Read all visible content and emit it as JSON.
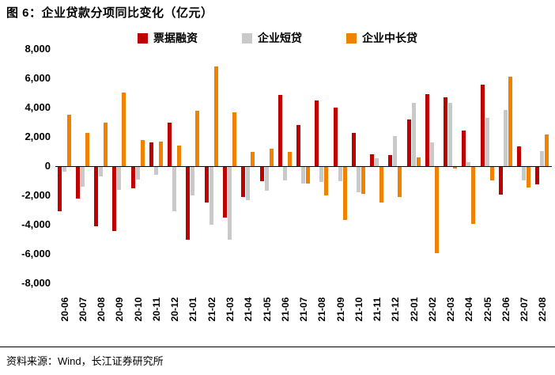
{
  "title": "图 6：企业贷款分项同比变化（亿元）",
  "source": "资料来源：Wind，长江证券研究所",
  "chart_data": {
    "type": "bar",
    "title": "企业贷款分项同比变化（亿元）",
    "xlabel": "",
    "ylabel": "",
    "ylim": [
      -8000,
      8000
    ],
    "ytick_step": 2000,
    "grid": false,
    "legend_position": "top",
    "categories": [
      "20-06",
      "20-07",
      "20-08",
      "20-09",
      "20-10",
      "20-11",
      "20-12",
      "21-01",
      "21-02",
      "21-03",
      "21-04",
      "21-05",
      "21-06",
      "21-07",
      "21-08",
      "21-09",
      "21-10",
      "21-11",
      "21-12",
      "22-01",
      "22-02",
      "22-03",
      "22-04",
      "22-05",
      "22-06",
      "22-07",
      "22-08"
    ],
    "series": [
      {
        "name": "票据融资",
        "color": "#c00000",
        "values": [
          -3090,
          -2200,
          -4100,
          -4430,
          -1500,
          1600,
          3000,
          -5000,
          -2500,
          -3500,
          -2100,
          -1000,
          4850,
          2790,
          4490,
          4000,
          2280,
          800,
          750,
          3190,
          4910,
          4710,
          2440,
          5590,
          -1950,
          1370,
          -1220
        ]
      },
      {
        "name": "企业短贷",
        "color": "#c9c9c9",
        "values": [
          -400,
          -1400,
          -700,
          -1600,
          -900,
          -600,
          -3100,
          -2000,
          -4000,
          -5000,
          -2300,
          -1700,
          -960,
          -1200,
          -1100,
          -1000,
          -1800,
          550,
          2040,
          4340,
          1610,
          4340,
          300,
          3290,
          3820,
          -970,
          1030
        ]
      },
      {
        "name": "企业中长贷",
        "color": "#f08200",
        "values": [
          3500,
          2300,
          2970,
          5040,
          1800,
          1700,
          1400,
          3800,
          6800,
          3660,
          1000,
          1200,
          1000,
          -1200,
          -2000,
          -3700,
          -1900,
          -2470,
          -2110,
          600,
          -5950,
          -150,
          -3950,
          -980,
          6130,
          -1480,
          2140
        ]
      }
    ]
  }
}
